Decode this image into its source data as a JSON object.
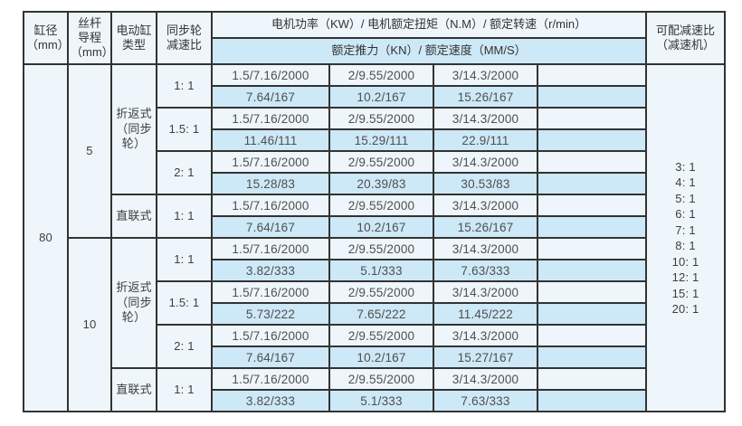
{
  "colors": {
    "row_light": "#eef6fb",
    "row_blue": "#cde8f6",
    "border": "#333333",
    "text_body": "#4f4f4f",
    "text_header": "#333333",
    "page_background": "#ffffff"
  },
  "table": {
    "header": {
      "bore": "缸径\n（mm）",
      "lead": "丝杆\n导程\n（mm）",
      "type": "电动缸\n类型",
      "sync_ratio": "同步轮\n减速比",
      "motor_spec": "电机功率（KW）/ 电机额定扭矩（N.M）/ 额定转速（r/min）",
      "rated_spec": "额定推力（KN）/ 额定速度（MM/S）",
      "gearbox": "可配减速比\n（减速机）"
    },
    "bore_value": "80",
    "lead_values": [
      "5",
      "10"
    ],
    "type_values": [
      "折返式\n（同步\n轮）",
      "直联式",
      "折返式\n（同步\n轮）",
      "直联式"
    ],
    "ratio_values": [
      "1: 1",
      "1.5: 1",
      "2: 1",
      "1: 1",
      "1: 1",
      "1.5: 1",
      "2: 1",
      "1: 1"
    ],
    "rows": [
      [
        "1.5/7.16/2000",
        "2/9.55/2000",
        "3/14.3/2000",
        ""
      ],
      [
        "7.64/167",
        "10.2/167",
        "15.26/167",
        ""
      ],
      [
        "1.5/7.16/2000",
        "2/9.55/2000",
        "3/14.3/2000",
        ""
      ],
      [
        "11.46/111",
        "15.29/111",
        "22.9/111",
        ""
      ],
      [
        "1.5/7.16/2000",
        "2/9.55/2000",
        "3/14.3/2000",
        ""
      ],
      [
        "15.28/83",
        "20.39/83",
        "30.53/83",
        ""
      ],
      [
        "1.5/7.16/2000",
        "2/9.55/2000",
        "3/14.3/2000",
        ""
      ],
      [
        "7.64/167",
        "10.2/167",
        "15.26/167",
        ""
      ],
      [
        "1.5/7.16/2000",
        "2/9.55/2000",
        "3/14.3/2000",
        ""
      ],
      [
        "3.82/333",
        "5.1/333",
        "7.63/333",
        ""
      ],
      [
        "1.5/7.16/2000",
        "2/9.55/2000",
        "3/14.3/2000",
        ""
      ],
      [
        "5.73/222",
        "7.65/222",
        "11.45/222",
        ""
      ],
      [
        "1.5/7.16/2000",
        "2/9.55/2000",
        "3/14.3/2000",
        ""
      ],
      [
        "7.64/167",
        "10.2/167",
        "15.27/167",
        ""
      ],
      [
        "1.5/7.16/2000",
        "2/9.55/2000",
        "3/14.3/2000",
        ""
      ],
      [
        "3.82/333",
        "5.1/333",
        "7.63/333",
        ""
      ]
    ],
    "gearbox_options": [
      "3: 1",
      "4: 1",
      "5: 1",
      "6: 1",
      "7: 1",
      "8: 1",
      "10: 1",
      "12: 1",
      "15: 1",
      "20: 1"
    ]
  }
}
